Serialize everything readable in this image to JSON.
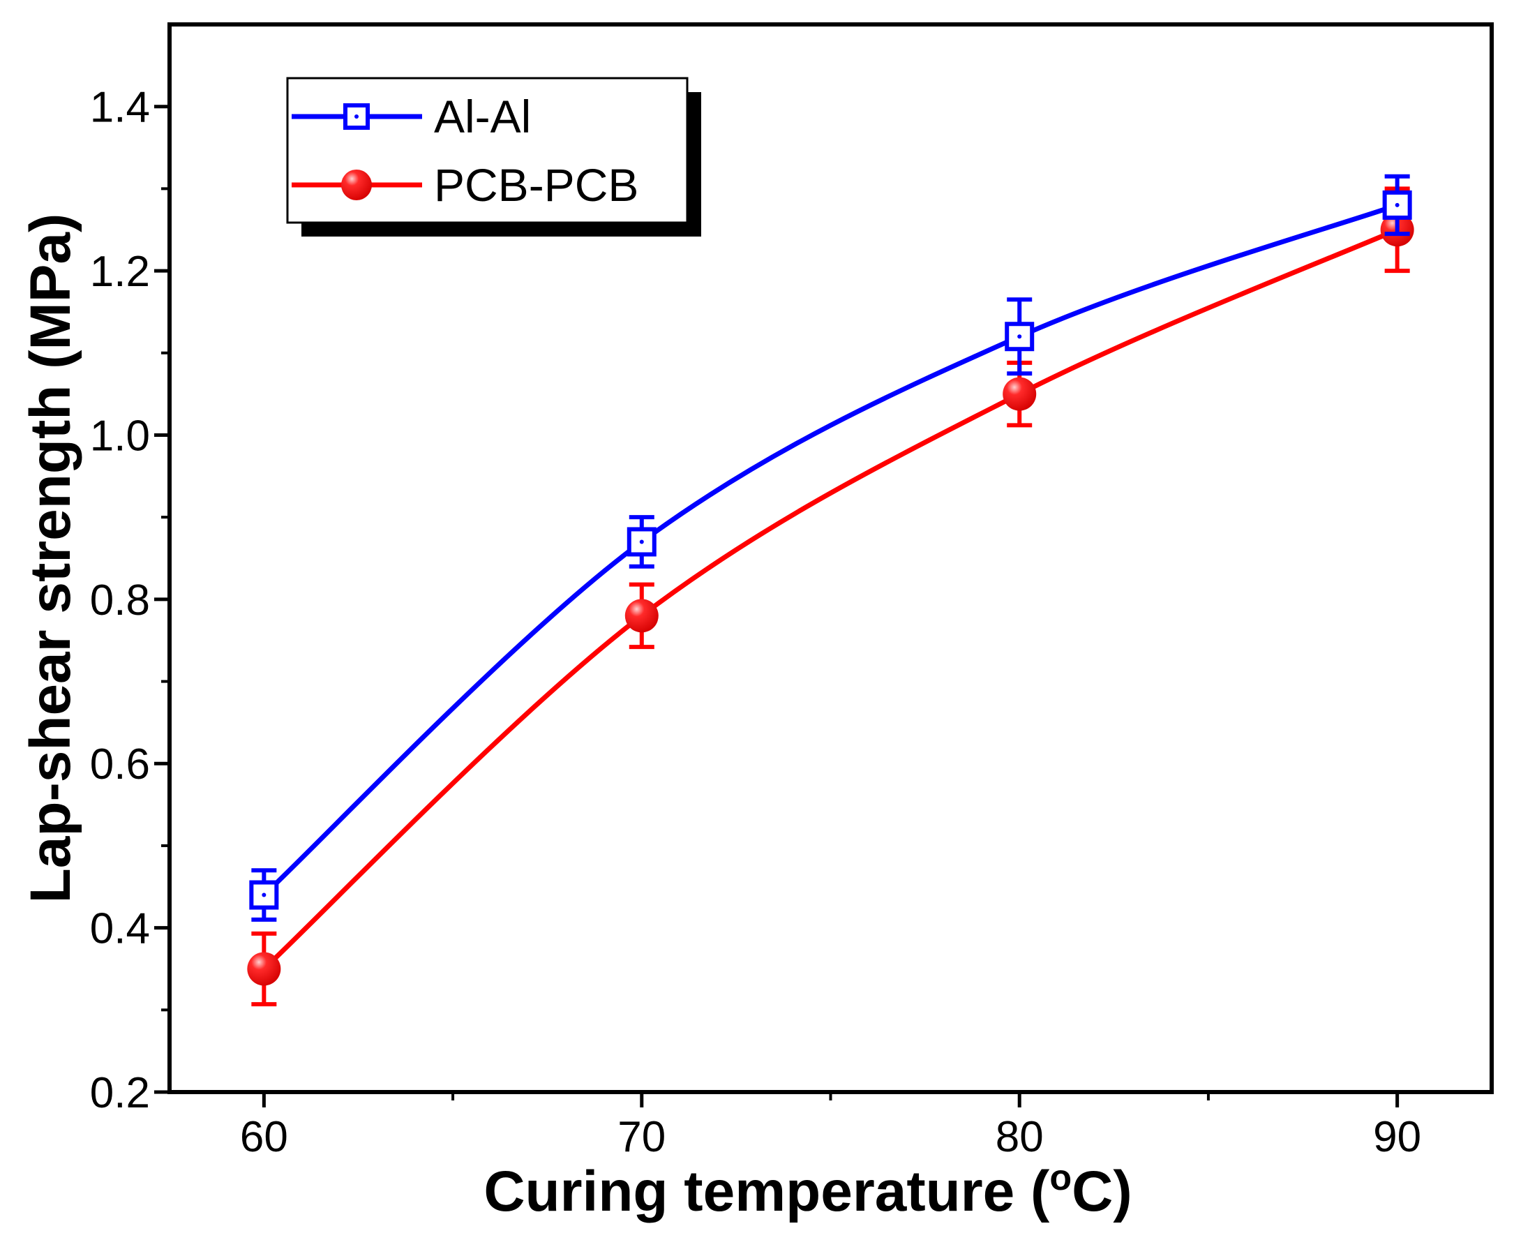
{
  "chart_data": {
    "type": "line",
    "title": "",
    "xlabel": "Curing temperature (",
    "xlabel_unit_super": "o",
    "xlabel_unit_rest": "C)",
    "ylabel": "Lap-shear strength (MPa)",
    "x": [
      60,
      70,
      80,
      90
    ],
    "xlim": [
      57.5,
      92.5
    ],
    "ylim": [
      0.2,
      1.5
    ],
    "xticks": [
      60,
      70,
      80,
      90
    ],
    "xtick_labels": [
      "60",
      "70",
      "80",
      "90"
    ],
    "yticks": [
      0.2,
      0.4,
      0.6,
      0.8,
      1.0,
      1.2,
      1.4
    ],
    "ytick_labels": [
      "0.2",
      "0.4",
      "0.6",
      "0.8",
      "1.0",
      "1.2",
      "1.4"
    ],
    "x_minor_ticks": [
      65,
      75,
      85
    ],
    "y_minor_ticks": [
      0.3,
      0.5,
      0.7,
      0.9,
      1.1,
      1.3
    ],
    "grid": false,
    "legend_position": "top-left",
    "series": [
      {
        "name": "Al-Al",
        "color": "#0000ff",
        "marker": "open-square",
        "values": [
          0.44,
          0.87,
          1.12,
          1.28
        ],
        "errors": [
          0.03,
          0.03,
          0.045,
          0.035
        ]
      },
      {
        "name": "PCB-PCB",
        "color": "#ff0000",
        "marker": "filled-sphere",
        "values": [
          0.35,
          0.78,
          1.05,
          1.25
        ],
        "errors": [
          0.043,
          0.038,
          0.038,
          0.05
        ]
      }
    ]
  }
}
